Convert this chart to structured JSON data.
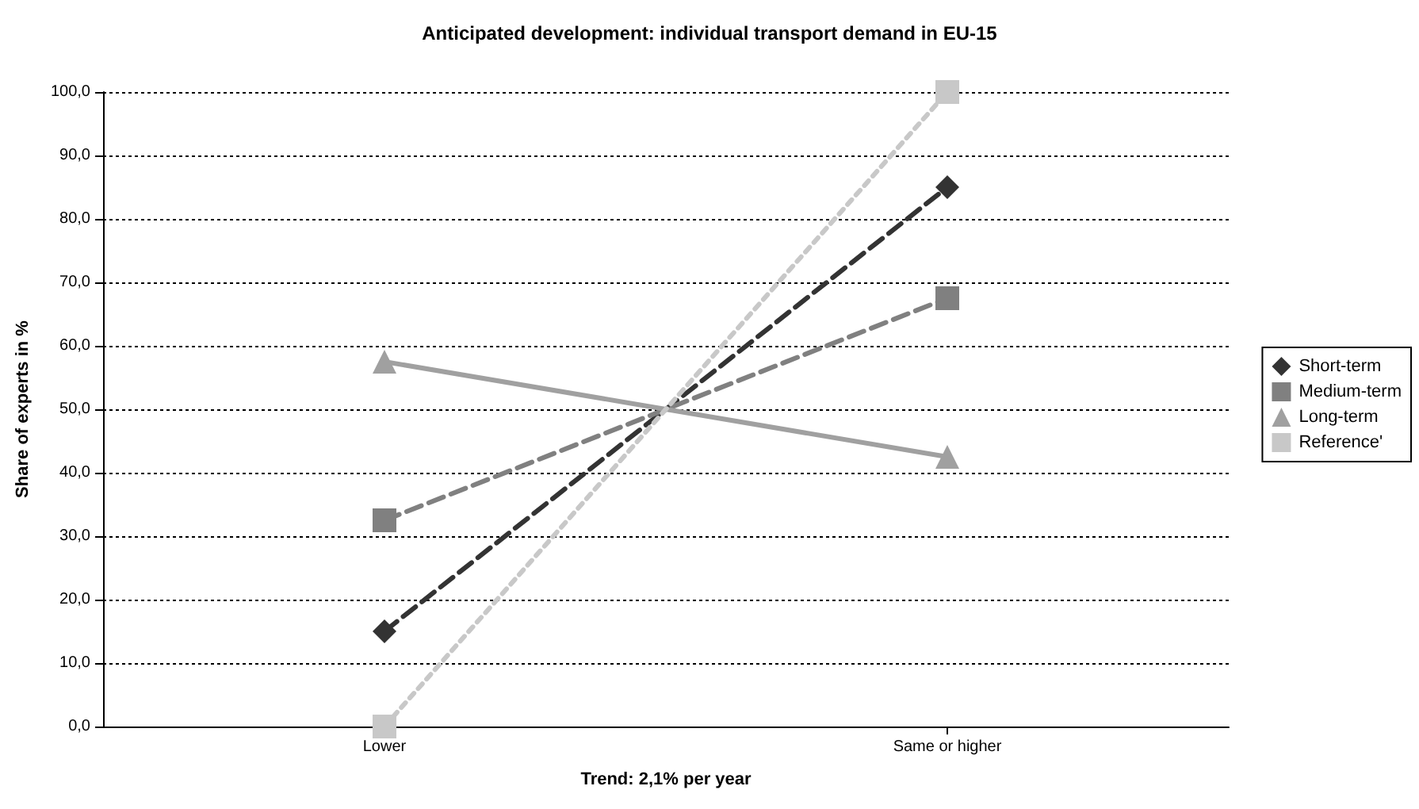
{
  "chart_data": {
    "type": "line",
    "title": "Anticipated development: individual transport demand in EU-15",
    "xlabel": "Trend: 2,1% per year",
    "ylabel": "Share of experts in %",
    "categories": [
      "Lower",
      "Same or higher"
    ],
    "series": [
      {
        "name": "Short-term",
        "color": "#333333",
        "values": [
          15,
          85
        ],
        "marker": "diamond",
        "line_style": "dashed"
      },
      {
        "name": "Medium-term",
        "color": "#808080",
        "values": [
          32.5,
          67.5
        ],
        "marker": "square",
        "line_style": "dashed"
      },
      {
        "name": "Long-term",
        "color": "#a0a0a0",
        "values": [
          57.5,
          42.5
        ],
        "marker": "triangle",
        "line_style": "solid"
      },
      {
        "name": "Reference'",
        "color": "#c8c8c8",
        "values": [
          0,
          100
        ],
        "marker": "square",
        "line_style": "dotted"
      }
    ],
    "ylim": [
      0,
      100
    ],
    "yticks": [
      {
        "value": 0,
        "label": "0,0"
      },
      {
        "value": 10,
        "label": "10,0"
      },
      {
        "value": 20,
        "label": "20,0"
      },
      {
        "value": 30,
        "label": "30,0"
      },
      {
        "value": 40,
        "label": "40,0"
      },
      {
        "value": 50,
        "label": "50,0"
      },
      {
        "value": 60,
        "label": "60,0"
      },
      {
        "value": 70,
        "label": "70,0"
      },
      {
        "value": 80,
        "label": "80,0"
      },
      {
        "value": 90,
        "label": "90,0"
      },
      {
        "value": 100,
        "label": "100,0"
      }
    ],
    "grid": "y",
    "legend": "right"
  }
}
